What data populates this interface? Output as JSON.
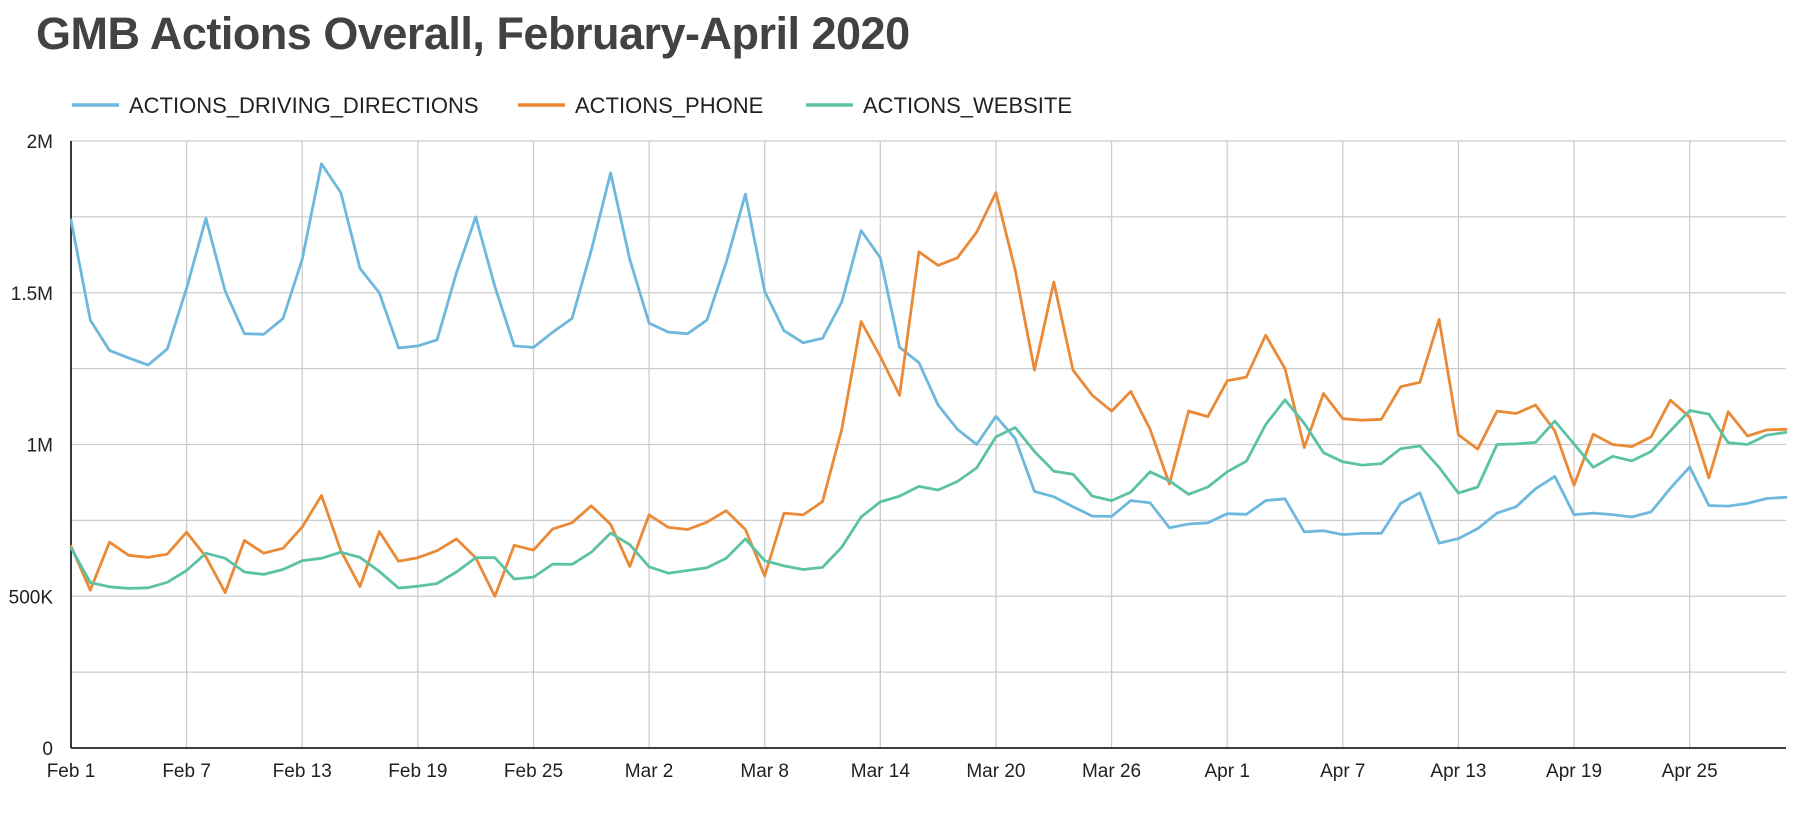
{
  "chart_data": {
    "type": "line",
    "title": "GMB Actions Overall, February-April 2020",
    "xlabel": "",
    "ylabel": "",
    "legend_position": "top-left",
    "grid": true,
    "x": [
      "Feb 1",
      "Feb 2",
      "Feb 3",
      "Feb 4",
      "Feb 5",
      "Feb 6",
      "Feb 7",
      "Feb 8",
      "Feb 9",
      "Feb 10",
      "Feb 11",
      "Feb 12",
      "Feb 13",
      "Feb 14",
      "Feb 15",
      "Feb 16",
      "Feb 17",
      "Feb 18",
      "Feb 19",
      "Feb 20",
      "Feb 21",
      "Feb 22",
      "Feb 23",
      "Feb 24",
      "Feb 25",
      "Feb 26",
      "Feb 27",
      "Feb 28",
      "Feb 29",
      "Mar 1",
      "Mar 2",
      "Mar 3",
      "Mar 4",
      "Mar 5",
      "Mar 6",
      "Mar 7",
      "Mar 8",
      "Mar 9",
      "Mar 10",
      "Mar 11",
      "Mar 12",
      "Mar 13",
      "Mar 14",
      "Mar 15",
      "Mar 16",
      "Mar 17",
      "Mar 18",
      "Mar 19",
      "Mar 20",
      "Mar 21",
      "Mar 22",
      "Mar 23",
      "Mar 24",
      "Mar 25",
      "Mar 26",
      "Mar 27",
      "Mar 28",
      "Mar 29",
      "Mar 30",
      "Mar 31",
      "Apr 1",
      "Apr 2",
      "Apr 3",
      "Apr 4",
      "Apr 5",
      "Apr 6",
      "Apr 7",
      "Apr 8",
      "Apr 9",
      "Apr 10",
      "Apr 11",
      "Apr 12",
      "Apr 13",
      "Apr 14",
      "Apr 15",
      "Apr 16",
      "Apr 17",
      "Apr 18",
      "Apr 19",
      "Apr 20",
      "Apr 21",
      "Apr 22",
      "Apr 23",
      "Apr 24",
      "Apr 25",
      "Apr 26",
      "Apr 27",
      "Apr 28",
      "Apr 29",
      "Apr 30"
    ],
    "x_tick_labels": [
      "Feb 1",
      "Feb 7",
      "Feb 13",
      "Feb 19",
      "Feb 25",
      "Mar 2",
      "Mar 8",
      "Mar 14",
      "Mar 20",
      "Mar 26",
      "Apr 1",
      "Apr 7",
      "Apr 13",
      "Apr 19",
      "Apr 25"
    ],
    "y_tick_values": [
      0,
      500000,
      1000000,
      1500000,
      2000000
    ],
    "y_tick_labels": [
      "0",
      "500K",
      "1M",
      "1.5M",
      "2M"
    ],
    "ylim": [
      0,
      2000000
    ],
    "series": [
      {
        "name": "ACTIONS_DRIVING_DIRECTIONS",
        "color": "#6fb8dd",
        "values": [
          1740000,
          1410000,
          1310000,
          1285000,
          1262000,
          1315000,
          1515000,
          1745000,
          1505000,
          1365000,
          1363000,
          1415000,
          1610000,
          1925000,
          1830000,
          1580000,
          1500000,
          1318000,
          1325000,
          1345000,
          1565000,
          1750000,
          1520000,
          1325000,
          1320000,
          1370000,
          1415000,
          1640000,
          1895000,
          1610000,
          1400000,
          1370000,
          1365000,
          1410000,
          1600000,
          1825000,
          1505000,
          1375000,
          1335000,
          1350000,
          1470000,
          1705000,
          1615000,
          1320000,
          1270000,
          1130000,
          1050000,
          1000000,
          1093000,
          1020000,
          845000,
          828000,
          795000,
          764000,
          763000,
          815000,
          808000,
          726000,
          738000,
          742000,
          772000,
          770000,
          815000,
          821000,
          712000,
          716000,
          703000,
          707000,
          707000,
          806000,
          841000,
          675000,
          690000,
          723000,
          774000,
          795000,
          854000,
          895000,
          769000,
          774000,
          769000,
          761000,
          778000,
          856000,
          926000,
          799000,
          797000,
          806000,
          822000,
          826000
        ]
      },
      {
        "name": "ACTIONS_PHONE",
        "color": "#ea8a36",
        "values": [
          665000,
          520000,
          678000,
          635000,
          628000,
          639000,
          711000,
          630000,
          512000,
          684000,
          642000,
          658000,
          728000,
          832000,
          650000,
          532000,
          713000,
          615000,
          627000,
          650000,
          689000,
          627000,
          500000,
          668000,
          652000,
          722000,
          742000,
          798000,
          737000,
          598000,
          768000,
          727000,
          720000,
          744000,
          782000,
          720000,
          567000,
          774000,
          768000,
          812000,
          1050000,
          1405000,
          1290000,
          1162000,
          1635000,
          1590000,
          1615000,
          1700000,
          1830000,
          1575000,
          1245000,
          1535000,
          1245000,
          1162000,
          1110000,
          1175000,
          1050000,
          870000,
          1110000,
          1092000,
          1210000,
          1222000,
          1360000,
          1250000,
          990000,
          1168000,
          1085000,
          1080000,
          1083000,
          1190000,
          1205000,
          1412000,
          1032000,
          985000,
          1110000,
          1102000,
          1130000,
          1045000,
          866000,
          1034000,
          1000000,
          993000,
          1025000,
          1146000,
          1090000,
          890000,
          1108000,
          1028000,
          1048000,
          1050000
        ]
      },
      {
        "name": "ACTIONS_WEBSITE",
        "color": "#5bc2a6",
        "values": [
          660000,
          545000,
          531000,
          526000,
          528000,
          546000,
          585000,
          642000,
          625000,
          580000,
          572000,
          588000,
          617000,
          625000,
          645000,
          628000,
          582000,
          527000,
          533000,
          542000,
          580000,
          627000,
          627000,
          557000,
          563000,
          606000,
          605000,
          645000,
          708000,
          670000,
          597000,
          576000,
          585000,
          594000,
          625000,
          689000,
          617000,
          600000,
          588000,
          595000,
          662000,
          761000,
          811000,
          830000,
          862000,
          850000,
          878000,
          923000,
          1025000,
          1056000,
          977000,
          912000,
          902000,
          830000,
          815000,
          843000,
          910000,
          880000,
          836000,
          860000,
          910000,
          945000,
          1066000,
          1147000,
          1070000,
          973000,
          943000,
          932000,
          937000,
          986000,
          995000,
          925000,
          840000,
          860000,
          1000000,
          1002000,
          1007000,
          1077000,
          1002000,
          925000,
          961000,
          946000,
          977000,
          1045000,
          1112000,
          1100000,
          1006000,
          1000000,
          1031000,
          1040000
        ]
      }
    ]
  }
}
